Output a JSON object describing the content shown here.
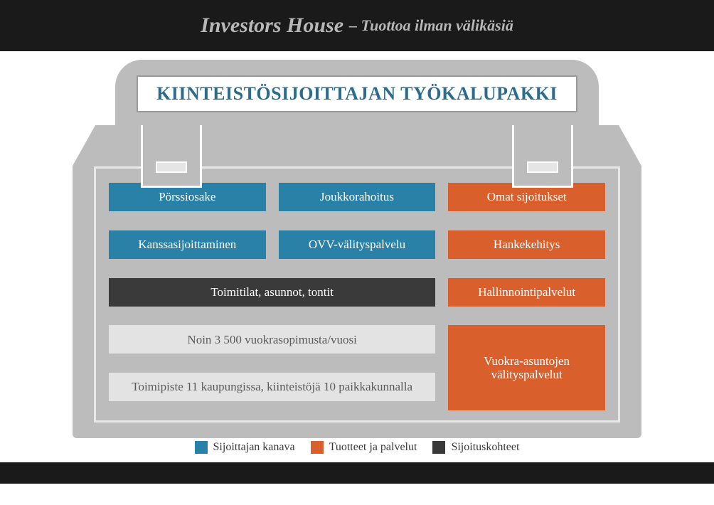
{
  "colors": {
    "blue": "#2a81a8",
    "orange": "#d95f2d",
    "dark": "#3a3a3a",
    "light_tile": "#e3e3e3",
    "light_text": "#5a5a5a",
    "case": "#bcbcbc",
    "title_color": "#2a6b8e",
    "header_bg": "#1a1a1a",
    "header_text": "#b8b8b8"
  },
  "header": {
    "main": "Investors House",
    "sub": "– Tuottoa ilman välikäsiä"
  },
  "title_plate": "KIINTEISTÖSIJOITTAJAN TYÖKALUPAKKI",
  "tiles": {
    "r1c1": "Pörssiosake",
    "r1c2": "Joukkorahoitus",
    "r1c3": "Omat sijoitukset",
    "r2c1": "Kanssasijoittaminen",
    "r2c2": "OVV-välityspalvelu",
    "r2c3": "Hankekehitys",
    "r3_wide": "Toimitilat, asunnot, tontit",
    "r3c3": "Hallinnointipalvelut",
    "r4_wide": "Noin 3 500 vuokrasopimusta/vuosi",
    "r5_wide": "Toimipiste 11 kaupungissa, kiinteistöjä 10 paikkakunnalla",
    "r45c3": "Vuokra-asuntojen välityspalvelut"
  },
  "legend": {
    "a": "Sijoittajan kanava",
    "b": "Tuotteet ja palvelut",
    "c": "Sijoituskohteet"
  }
}
